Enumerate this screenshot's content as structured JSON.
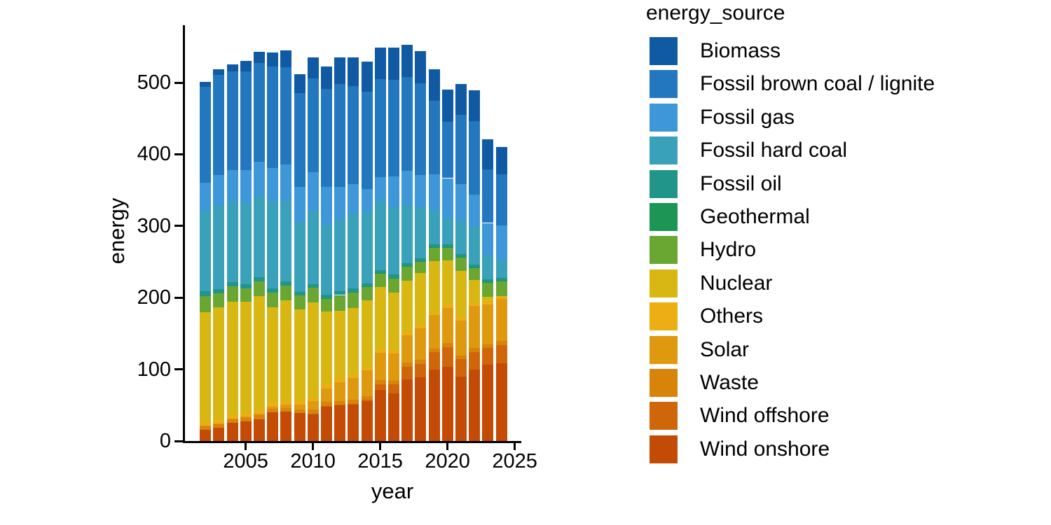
{
  "chart_data": {
    "type": "bar",
    "stacked": true,
    "xlabel": "year",
    "ylabel": "energy",
    "legend_title": "energy_source",
    "legend_position": "right",
    "grid": false,
    "x": [
      2002,
      2003,
      2004,
      2005,
      2006,
      2007,
      2008,
      2009,
      2010,
      2011,
      2012,
      2013,
      2014,
      2015,
      2016,
      2017,
      2018,
      2019,
      2020,
      2021,
      2022,
      2023,
      2024
    ],
    "x_ticks": [
      2005,
      2010,
      2015,
      2020,
      2025
    ],
    "y_ticks": [
      0,
      100,
      200,
      300,
      400,
      500
    ],
    "ylim": [
      0,
      580
    ],
    "stack_note": "legend order top-to-bottom equals stack order top-to-bottom; Wind onshore is the bottom segment",
    "series": [
      {
        "name": "Biomass",
        "color": "#0F5AA2",
        "values": [
          6,
          8,
          10,
          14,
          16,
          20,
          23,
          26,
          29,
          32,
          38,
          40,
          42,
          44,
          45,
          45,
          45,
          44,
          45,
          43,
          43,
          42,
          39
        ]
      },
      {
        "name": "Fossil brown coal / lignite",
        "color": "#2277BE",
        "values": [
          134,
          140,
          138,
          138,
          138,
          141,
          136,
          131,
          131,
          136,
          143,
          137,
          135,
          137,
          135,
          131,
          128,
          102,
          79,
          96,
          102,
          75,
          71
        ]
      },
      {
        "name": "Fossil gas",
        "color": "#3D97D8",
        "values": [
          40,
          42,
          44,
          46,
          48,
          47,
          51,
          49,
          55,
          53,
          46,
          42,
          33,
          33,
          43,
          49,
          45,
          51,
          56,
          52,
          45,
          44,
          49
        ]
      },
      {
        "name": "Fossil hard coal",
        "color": "#39A1BA",
        "values": [
          112,
          117,
          112,
          113,
          113,
          121,
          112,
          98,
          101,
          98,
          100,
          103,
          99,
          97,
          94,
          80,
          71,
          47,
          36,
          46,
          53,
          35,
          24
        ]
      },
      {
        "name": "Fossil oil",
        "color": "#219589",
        "values": [
          6,
          6,
          6,
          6,
          6,
          6,
          6,
          5,
          5,
          5,
          5,
          5,
          4,
          4,
          4,
          4,
          4,
          4,
          4,
          4,
          4,
          4,
          4
        ]
      },
      {
        "name": "Geothermal",
        "color": "#1C9555",
        "values": [
          0,
          0,
          0,
          0,
          0,
          0,
          0,
          0,
          0,
          0.1,
          0.1,
          0.1,
          0.1,
          0.1,
          0.2,
          0.2,
          0.2,
          0.2,
          0.2,
          0.2,
          0.2,
          0.2,
          0.2
        ]
      },
      {
        "name": "Hydro",
        "color": "#69A732",
        "values": [
          23,
          19,
          21,
          19,
          20,
          21,
          20,
          19,
          21,
          18,
          22,
          23,
          20,
          19,
          21,
          20,
          17,
          19,
          19,
          19,
          17,
          20,
          21
        ]
      },
      {
        "name": "Nuclear",
        "color": "#D8B712",
        "values": [
          153,
          157,
          158,
          155,
          159,
          133,
          141,
          128,
          133,
          102,
          94,
          92,
          92,
          87,
          80,
          72,
          72,
          71,
          61,
          65,
          33,
          7,
          0
        ]
      },
      {
        "name": "Others",
        "color": "#ECAE12",
        "values": [
          5,
          5,
          5,
          5,
          5,
          5,
          5,
          5,
          5,
          5,
          5,
          5,
          5,
          4.5,
          4.5,
          4.5,
          4.5,
          4.5,
          4.5,
          4,
          4,
          4,
          4
        ]
      },
      {
        "name": "Solar",
        "color": "#DF990E",
        "values": [
          0.2,
          0.3,
          0.6,
          1.3,
          2.2,
          3.1,
          4.4,
          6.6,
          11.7,
          19.3,
          26.4,
          31,
          36.1,
          38.7,
          38.1,
          38.4,
          44,
          46.4,
          49.5,
          49,
          58.2,
          55,
          59
        ]
      },
      {
        "name": "Waste",
        "color": "#D8830A",
        "values": [
          5.5,
          5.5,
          5.5,
          5.5,
          5.5,
          5.5,
          5.5,
          5.5,
          5.5,
          5.5,
          5.5,
          5.5,
          5.5,
          5.5,
          5.5,
          5.5,
          5.5,
          5.5,
          5.5,
          5.5,
          5.5,
          5.5,
          5.5
        ]
      },
      {
        "name": "Wind offshore",
        "color": "#CF670A",
        "values": [
          0,
          0,
          0,
          0,
          0,
          0,
          0,
          0,
          0.2,
          0.6,
          0.7,
          0.9,
          1.4,
          8.2,
          12.4,
          17.7,
          19.1,
          24.4,
          27.3,
          24.4,
          24.8,
          23.5,
          25.9
        ]
      },
      {
        "name": "Wind onshore",
        "color": "#C44B06",
        "values": [
          15.9,
          18.9,
          25.5,
          27.2,
          30.7,
          39.7,
          40.6,
          38.6,
          37.8,
          48.3,
          49.9,
          50.8,
          55.9,
          70.9,
          66.3,
          85.8,
          88.8,
          99.2,
          103.7,
          89.5,
          99.5,
          106,
          108
        ]
      }
    ]
  }
}
